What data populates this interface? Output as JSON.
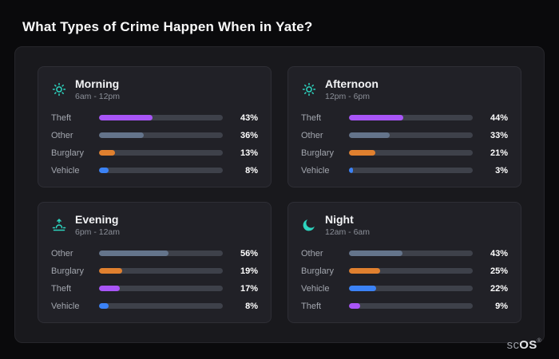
{
  "page": {
    "title": "What Types of Crime Happen When in Yate?"
  },
  "brand": {
    "prefix": "sc",
    "suffix": "OS",
    "reg": "®"
  },
  "colors": {
    "icon": "#2dd4bf",
    "track": "#3e414a",
    "theft": "#a855f7",
    "other": "#64748b",
    "burglary": "#e0802f",
    "vehicle": "#3b82f6"
  },
  "cards": [
    {
      "title": "Morning",
      "subtitle": "6am - 12pm",
      "icon": "sun-icon",
      "rows": [
        {
          "label": "Theft",
          "value": 43,
          "pct": "43%",
          "color": "theft"
        },
        {
          "label": "Other",
          "value": 36,
          "pct": "36%",
          "color": "other"
        },
        {
          "label": "Burglary",
          "value": 13,
          "pct": "13%",
          "color": "burglary"
        },
        {
          "label": "Vehicle",
          "value": 8,
          "pct": "8%",
          "color": "vehicle"
        }
      ]
    },
    {
      "title": "Afternoon",
      "subtitle": "12pm - 6pm",
      "icon": "sun-icon",
      "rows": [
        {
          "label": "Theft",
          "value": 44,
          "pct": "44%",
          "color": "theft"
        },
        {
          "label": "Other",
          "value": 33,
          "pct": "33%",
          "color": "other"
        },
        {
          "label": "Burglary",
          "value": 21,
          "pct": "21%",
          "color": "burglary"
        },
        {
          "label": "Vehicle",
          "value": 3,
          "pct": "3%",
          "color": "vehicle"
        }
      ]
    },
    {
      "title": "Evening",
      "subtitle": "6pm - 12am",
      "icon": "sunset-icon",
      "rows": [
        {
          "label": "Other",
          "value": 56,
          "pct": "56%",
          "color": "other"
        },
        {
          "label": "Burglary",
          "value": 19,
          "pct": "19%",
          "color": "burglary"
        },
        {
          "label": "Theft",
          "value": 17,
          "pct": "17%",
          "color": "theft"
        },
        {
          "label": "Vehicle",
          "value": 8,
          "pct": "8%",
          "color": "vehicle"
        }
      ]
    },
    {
      "title": "Night",
      "subtitle": "12am - 6am",
      "icon": "moon-icon",
      "rows": [
        {
          "label": "Other",
          "value": 43,
          "pct": "43%",
          "color": "other"
        },
        {
          "label": "Burglary",
          "value": 25,
          "pct": "25%",
          "color": "burglary"
        },
        {
          "label": "Vehicle",
          "value": 22,
          "pct": "22%",
          "color": "vehicle"
        },
        {
          "label": "Theft",
          "value": 9,
          "pct": "9%",
          "color": "theft"
        }
      ]
    }
  ],
  "chart_data": [
    {
      "type": "bar",
      "orientation": "horizontal",
      "title": "Morning",
      "subtitle": "6am - 12pm",
      "categories": [
        "Theft",
        "Other",
        "Burglary",
        "Vehicle"
      ],
      "values": [
        43,
        36,
        13,
        8
      ],
      "unit": "%",
      "xlim": [
        0,
        100
      ],
      "grid": false,
      "legend": false
    },
    {
      "type": "bar",
      "orientation": "horizontal",
      "title": "Afternoon",
      "subtitle": "12pm - 6pm",
      "categories": [
        "Theft",
        "Other",
        "Burglary",
        "Vehicle"
      ],
      "values": [
        44,
        33,
        21,
        3
      ],
      "unit": "%",
      "xlim": [
        0,
        100
      ],
      "grid": false,
      "legend": false
    },
    {
      "type": "bar",
      "orientation": "horizontal",
      "title": "Evening",
      "subtitle": "6pm - 12am",
      "categories": [
        "Other",
        "Burglary",
        "Theft",
        "Vehicle"
      ],
      "values": [
        56,
        19,
        17,
        8
      ],
      "unit": "%",
      "xlim": [
        0,
        100
      ],
      "grid": false,
      "legend": false
    },
    {
      "type": "bar",
      "orientation": "horizontal",
      "title": "Night",
      "subtitle": "12am - 6am",
      "categories": [
        "Other",
        "Burglary",
        "Vehicle",
        "Theft"
      ],
      "values": [
        43,
        25,
        22,
        9
      ],
      "unit": "%",
      "xlim": [
        0,
        100
      ],
      "grid": false,
      "legend": false
    }
  ]
}
